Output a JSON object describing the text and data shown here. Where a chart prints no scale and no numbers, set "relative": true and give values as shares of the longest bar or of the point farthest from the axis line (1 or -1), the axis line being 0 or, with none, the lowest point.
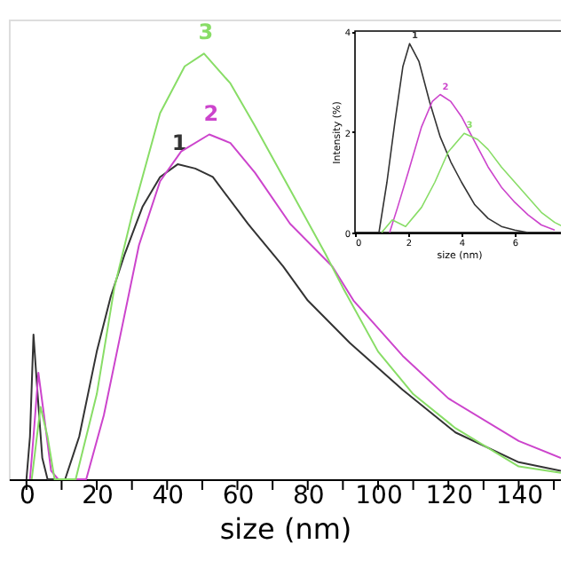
{
  "chart_data": [
    {
      "type": "line",
      "xlabel": "size (nm)",
      "relative": true,
      "xlim": [
        -5,
        152
      ],
      "xticks": [
        0,
        {
          "value": 10,
          "label": null
        },
        20,
        {
          "value": 30,
          "label": null
        },
        40,
        {
          "value": 50,
          "label": null
        },
        60,
        {
          "value": 70,
          "label": null
        },
        80,
        {
          "value": 90,
          "label": null
        },
        100,
        {
          "value": 110,
          "label": null
        },
        120,
        {
          "value": 130,
          "label": null
        },
        140,
        {
          "value": 150,
          "label": null
        }
      ],
      "grid": false,
      "marker": "none",
      "line_style": "solid",
      "series": [
        {
          "name": "1",
          "color": "#333333",
          "x": [
            0,
            1,
            2,
            3,
            4.5,
            6,
            11,
            15,
            20,
            24,
            28,
            33,
            38,
            43,
            48,
            53,
            63,
            73,
            80,
            92,
            107,
            122,
            140,
            152
          ],
          "values": [
            0,
            0.1,
            0.34,
            0.22,
            0.05,
            0,
            0,
            0.1,
            0.3,
            0.43,
            0.53,
            0.64,
            0.71,
            0.74,
            0.73,
            0.71,
            0.6,
            0.5,
            0.42,
            0.32,
            0.21,
            0.11,
            0.04,
            0.02
          ]
        },
        {
          "name": "2",
          "color": "#cc44cc",
          "x": [
            1,
            2,
            3.4,
            5,
            7,
            9,
            17,
            22,
            27,
            32,
            38,
            44,
            52,
            58,
            65,
            75,
            87,
            93,
            107,
            120,
            140,
            152
          ],
          "values": [
            0,
            0.1,
            0.25,
            0.15,
            0.02,
            0,
            0,
            0.15,
            0.35,
            0.55,
            0.7,
            0.77,
            0.81,
            0.79,
            0.72,
            0.6,
            0.5,
            0.42,
            0.29,
            0.19,
            0.09,
            0.05
          ]
        },
        {
          "name": "3",
          "color": "#88dd66",
          "x": [
            1.5,
            4,
            6,
            8,
            14,
            20,
            25,
            30,
            33,
            38,
            45,
            50.5,
            58,
            65,
            75,
            85,
            90,
            100,
            110,
            122,
            140,
            152
          ],
          "values": [
            0,
            0.17,
            0.1,
            0,
            0,
            0.2,
            0.45,
            0.62,
            0.71,
            0.86,
            0.97,
            1.0,
            0.93,
            0.83,
            0.68,
            0.53,
            0.45,
            0.3,
            0.2,
            0.12,
            0.03,
            0.015
          ]
        }
      ]
    },
    {
      "type": "line",
      "xlabel": "size (nm)",
      "ylabel": "Intensity (%)",
      "xlim": [
        0,
        7.8
      ],
      "ylim": [
        0,
        4
      ],
      "xticks": [
        0,
        2,
        4,
        6
      ],
      "yticks": [
        0,
        2,
        4
      ],
      "grid": false,
      "marker": "none",
      "line_style": "solid",
      "series": [
        {
          "name": "1",
          "color": "#333333",
          "x": [
            0.9,
            1.2,
            1.5,
            1.8,
            2.05,
            2.4,
            2.8,
            3.2,
            3.6,
            4,
            4.5,
            5,
            5.5,
            6,
            6.5
          ],
          "values": [
            0,
            1.0,
            2.2,
            3.3,
            3.75,
            3.4,
            2.6,
            1.9,
            1.4,
            1.0,
            0.55,
            0.28,
            0.12,
            0.05,
            0
          ]
        },
        {
          "name": "2",
          "color": "#cc44cc",
          "x": [
            1.3,
            1.6,
            2,
            2.5,
            2.9,
            3.2,
            3.6,
            4,
            4.5,
            5,
            5.5,
            6,
            6.5,
            7,
            7.5
          ],
          "values": [
            0,
            0.5,
            1.2,
            2.1,
            2.6,
            2.74,
            2.6,
            2.3,
            1.8,
            1.3,
            0.9,
            0.6,
            0.35,
            0.15,
            0.05
          ]
        },
        {
          "name": "3",
          "color": "#88dd66",
          "x": [
            1,
            1.4,
            1.9,
            2.5,
            3,
            3.5,
            4.1,
            4.6,
            5,
            5.5,
            6,
            6.5,
            7,
            7.5,
            7.8
          ],
          "values": [
            0,
            0.25,
            0.12,
            0.5,
            1.0,
            1.6,
            1.97,
            1.85,
            1.65,
            1.3,
            1.0,
            0.7,
            0.4,
            0.2,
            0.12
          ]
        }
      ]
    }
  ]
}
